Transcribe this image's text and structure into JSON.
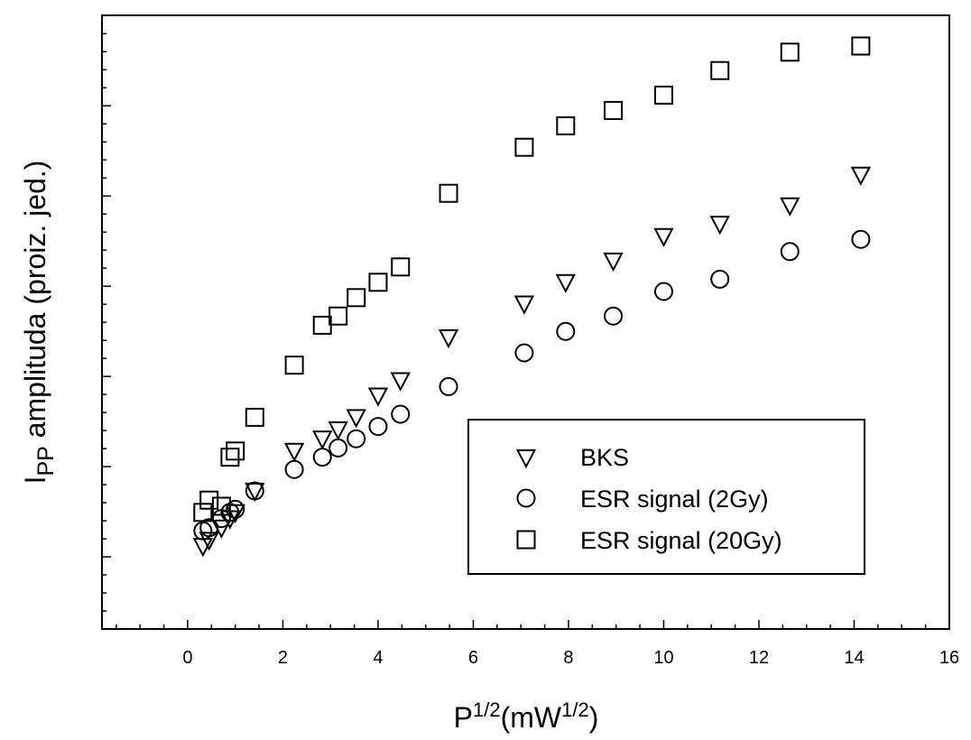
{
  "chart_data": {
    "type": "scatter",
    "xlabel": {
      "base": "P",
      "exp": "1/2",
      "unit_pre": "(mW",
      "unit_exp": "1/2",
      "unit_post": ")"
    },
    "ylabel": {
      "pre": "I",
      "sub": "PP",
      "post": " amplituda (proiz. jed.)"
    },
    "xlim": [
      -1.8,
      16
    ],
    "ylim": [
      0,
      1
    ],
    "x_ticks": [
      "0",
      "2",
      "4",
      "6",
      "8",
      "10",
      "12",
      "14",
      "16"
    ],
    "y_ticks_labeled": false,
    "legend_position": "bottom-right",
    "series": [
      {
        "name": "BKS",
        "marker": "triangle-down",
        "x": [
          0.32,
          0.45,
          0.71,
          0.89,
          1.0,
          1.41,
          2.24,
          2.83,
          3.16,
          3.54,
          4.0,
          4.47,
          5.48,
          7.07,
          7.94,
          8.94,
          10.0,
          11.18,
          12.65,
          14.14
        ],
        "y": [
          0.135,
          0.145,
          0.165,
          0.18,
          0.19,
          0.225,
          0.29,
          0.31,
          0.325,
          0.345,
          0.38,
          0.405,
          0.475,
          0.53,
          0.565,
          0.6,
          0.64,
          0.66,
          0.69,
          0.74
        ]
      },
      {
        "name": "ESR signal (2Gy)",
        "marker": "circle",
        "x": [
          0.32,
          0.45,
          0.71,
          0.89,
          1.0,
          1.41,
          2.24,
          2.83,
          3.16,
          3.54,
          4.0,
          4.47,
          5.48,
          7.07,
          7.94,
          8.94,
          10.0,
          11.18,
          12.65,
          14.14
        ],
        "y": [
          0.16,
          0.165,
          0.18,
          0.19,
          0.195,
          0.225,
          0.26,
          0.28,
          0.295,
          0.31,
          0.33,
          0.35,
          0.395,
          0.45,
          0.485,
          0.51,
          0.55,
          0.57,
          0.615,
          0.635
        ]
      },
      {
        "name": "ESR signal (20Gy)",
        "marker": "square",
        "x": [
          0.32,
          0.45,
          0.71,
          0.89,
          1.0,
          1.41,
          2.24,
          2.83,
          3.16,
          3.54,
          4.0,
          4.47,
          5.48,
          7.07,
          7.94,
          8.94,
          10.0,
          11.18,
          12.65,
          14.14
        ],
        "y": [
          0.19,
          0.21,
          0.2,
          0.28,
          0.29,
          0.345,
          0.43,
          0.495,
          0.51,
          0.54,
          0.565,
          0.59,
          0.71,
          0.785,
          0.82,
          0.845,
          0.87,
          0.91,
          0.94,
          0.95
        ]
      }
    ]
  }
}
